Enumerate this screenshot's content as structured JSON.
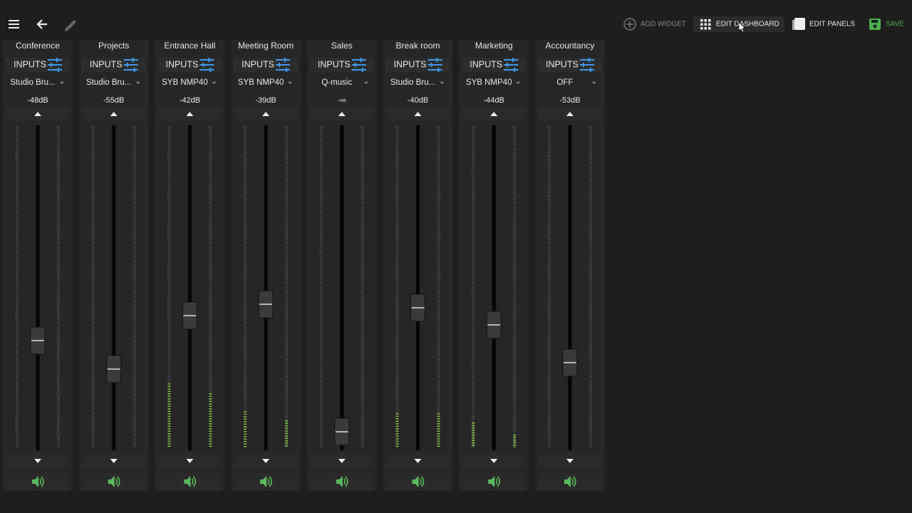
{
  "toolbar": {
    "add_widget": "ADD WIDGET",
    "edit_dashboard": "EDIT DASHBOARD",
    "edit_panels": "EDIT PANELS",
    "save": "SAVE"
  },
  "channels": [
    {
      "name": "Conference",
      "inputs": "INPUTS",
      "source": "Studio Bru...",
      "level": "-48dB"
    },
    {
      "name": "Projects",
      "inputs": "INPUTS",
      "source": "Studio Bru...",
      "level": "-55dB"
    },
    {
      "name": "Entrance Hall",
      "inputs": "INPUTS",
      "source": "SYB NMP40",
      "level": "-42dB"
    },
    {
      "name": "Meeting Room",
      "inputs": "INPUTS",
      "source": "SYB NMP40",
      "level": "-39dB"
    },
    {
      "name": "Sales",
      "inputs": "INPUTS",
      "source": "Q-music",
      "level": "-∞"
    },
    {
      "name": "Break room",
      "inputs": "INPUTS",
      "source": "Studio Bru...",
      "level": "-40dB"
    },
    {
      "name": "Marketing",
      "inputs": "INPUTS",
      "source": "SYB NMP40",
      "level": "-44dB"
    },
    {
      "name": "Accountancy",
      "inputs": "INPUTS",
      "source": "OFF",
      "level": "-53dB"
    }
  ]
}
